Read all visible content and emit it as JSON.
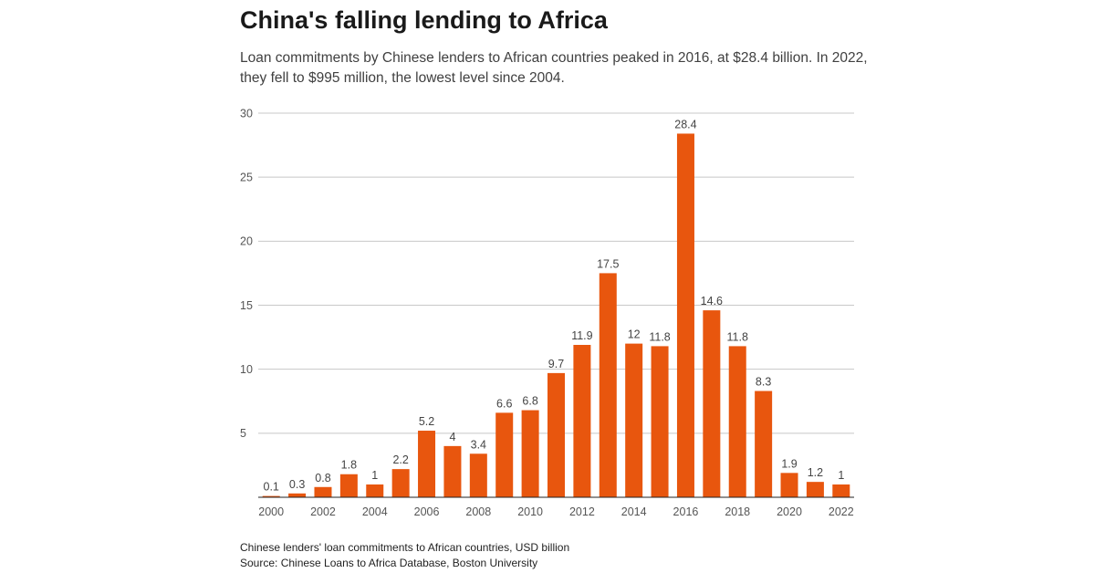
{
  "title": "China's falling lending to Africa",
  "subtitle": "Loan commitments by Chinese lenders to African countries peaked in 2016, at $28.4 billion. In 2022, they fell to $995 million, the lowest level since 2004.",
  "footer": {
    "note": "Chinese lenders' loan commitments to African countries, USD billion",
    "source": "Source: Chinese Loans to Africa Database, Boston University"
  },
  "colors": {
    "bar": "#e8560e",
    "grid": "#c8c8c8",
    "axis": "#222222"
  },
  "chart_data": {
    "type": "bar",
    "title": "China's falling lending to Africa",
    "xlabel": "",
    "ylabel": "",
    "ylim": [
      0,
      30
    ],
    "yticks": [
      5,
      10,
      15,
      20,
      25,
      30
    ],
    "grid": true,
    "categories": [
      "2000",
      "2001",
      "2002",
      "2003",
      "2004",
      "2005",
      "2006",
      "2007",
      "2008",
      "2009",
      "2010",
      "2011",
      "2012",
      "2013",
      "2014",
      "2015",
      "2016",
      "2017",
      "2018",
      "2019",
      "2020",
      "2021",
      "2022"
    ],
    "xtick_labels": [
      "2000",
      "2002",
      "2004",
      "2006",
      "2008",
      "2010",
      "2012",
      "2014",
      "2016",
      "2018",
      "2020",
      "2022"
    ],
    "values": [
      0.1,
      0.3,
      0.8,
      1.8,
      1,
      2.2,
      5.2,
      4,
      3.4,
      6.6,
      6.8,
      9.7,
      11.9,
      17.5,
      12,
      11.8,
      28.4,
      14.6,
      11.8,
      8.3,
      1.9,
      1.2,
      1
    ],
    "data_labels": [
      "0.1",
      "0.3",
      "0.8",
      "1.8",
      "1",
      "2.2",
      "5.2",
      "4",
      "3.4",
      "6.6",
      "6.8",
      "9.7",
      "11.9",
      "17.5",
      "12",
      "11.8",
      "28.4",
      "14.6",
      "11.8",
      "8.3",
      "1.9",
      "1.2",
      "1"
    ]
  }
}
